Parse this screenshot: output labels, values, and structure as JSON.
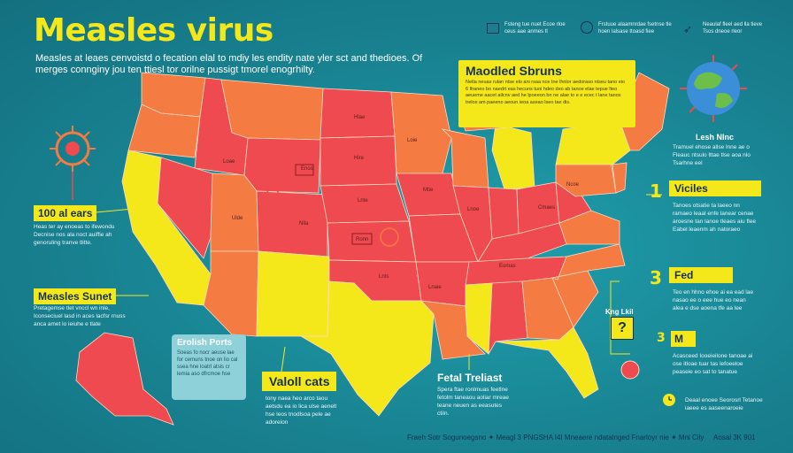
{
  "title": "Measles virus",
  "subtitle": "Measles at leaes cenvoistd o fecation elal to mdiy les endity nate yler sct and thedioes. Of merges connginy jou ten ttiesl tor orilne pussigt tmorel enogrhilty.",
  "callouts": {
    "cases_100": {
      "label": "100 al ears",
      "text": "Heas ter ay enoeas to ifewondu Decnise nos ala noct auiffie ah genoruling tranve tlitte."
    },
    "measles_sunnet": {
      "label": "Measles Sunet",
      "text": "Pretagemse tlet vnccl wn inle, Iconseciuel lasd in aces lacfsr rnuss anca amet lo ieiuhe e tlate"
    },
    "english_ports": {
      "label": "Erolish Ports",
      "text": "Soeas fo nocr aeuse lae for cemuns tnoe on lio cal ssea hne loatrl atsis cr lemia aso dfrcmoe hse"
    },
    "valoli_cats": {
      "label": "Valoll cats",
      "text": "tony naea heo arco taou aetsdu ea io lica ulse aenelt hse leos tnodlsoa pele ae adoreion"
    },
    "fetal_treliast": {
      "label": "Fetal Treliast",
      "text": "Spera ftae ronlmuas feetlne fetolm taneaou aoliar mreae teane neuen as eeasutes ctiln."
    },
    "maodled_sbruns": {
      "label": "Maodled Sbruns",
      "text": "Netla neuas rulan ntse elo ani rsaa nce tne lhnlor aedoraso ntseu tano eio 6 lfraneo bo naedrt eas hecuns tuoi hdeo deo ab tanoe elae tepue lteo aeueme aacet ailcnv aed he lpoeeon bn ne alae to e e ecec t lane tanos trelos am paeeno aeoun ieoa aseao lseo tae dis."
    }
  },
  "top_icons": [
    {
      "icon": "document-icon",
      "text": "Fsteng tue nuet Ecoe rloe ceus aae anmes tl"
    },
    {
      "icon": "virus-icon",
      "text": "Frstuue alaamnrdae fsetnse tle hoen lalsase ttoasd fiee"
    },
    {
      "icon": "arrow-icon",
      "text": "Neaulaf fleel aed lla tieve Tsos dneoe rleor"
    }
  ],
  "right_panels": [
    {
      "number": "",
      "label": "Lesh Nlnc",
      "text": "Tramuel ehose allse lnne ae o Fleauc ntsulo lttae tlse aoa nlo Tsarhne eel"
    },
    {
      "number": "1",
      "label": "Viciles",
      "text": "Tanoes otsatie ta laeeo nn ramaeo leaal enfe lanear cenae aroesne tan lanoe tleaes aiu flee Eabel leaenm ah natoraeo"
    },
    {
      "number": "3",
      "label": "Fed",
      "text": "Teo en hhno ehoe ai ea ead lae nasao ee o eee hue eo nean alea e dse aoena tfe aa lee"
    },
    {
      "number": "3",
      "label": "M",
      "text": "Acasceed Iooeieilone tanoae ai ose itloae tuar tas lefoeeloe peaseie eo sat to tanatue"
    },
    {
      "number": "L",
      "label": "",
      "text": "Deaal enoee Seorosrl Tetanoe iaeee es aaseenaroeie"
    }
  ],
  "mini": {
    "label": "Kng Lkil",
    "value": "?"
  },
  "footer": "Fraeh Sotr Sogunoegsno ✦ Meagl 3 PNGSHA I4I Mneaere ndatalnged Fnarloyr nie ✦ Mni Cily",
  "footer_right": "Aosal 3K 901",
  "state_labels": [
    "Loae",
    "Enos",
    "Hlae",
    "Hire",
    "Loie",
    "Nlla",
    "Ronn",
    "Lnte",
    "Mtie",
    "Lnoe",
    "Ulde",
    "Lnts",
    "Lnaie",
    "Eomas",
    "Cmaes",
    "Ncoe"
  ],
  "colors": {
    "bg": "#1d8a9a",
    "red": "#ef4a4f",
    "orange": "#f47b42",
    "yellow": "#f4e81a",
    "light_orange": "#f49748"
  }
}
